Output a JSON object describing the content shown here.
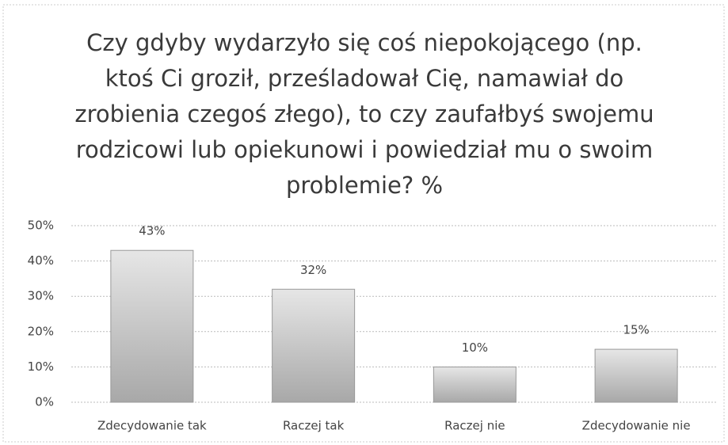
{
  "chart_data": {
    "type": "bar",
    "title": "Czy gdyby wydarzyło się coś niepokojącego (np. ktoś Ci groził, prześladował Cię, namawiał do zrobienia czegoś złego), to czy zaufałbyś swojemu rodzicowi lub opiekunowi i powiedział mu o swoim problemie? %",
    "categories": [
      "Zdecydowanie tak",
      "Raczej tak",
      "Raczej nie",
      "Zdecydowanie nie"
    ],
    "values": [
      43,
      32,
      10,
      15
    ],
    "value_labels": [
      "43%",
      "32%",
      "10%",
      "15%"
    ],
    "color": "#c4c4c4",
    "ylim": [
      0,
      50
    ],
    "yticks": [
      {
        "value": 0,
        "label": "0%"
      },
      {
        "value": 10,
        "label": "10%"
      },
      {
        "value": 20,
        "label": "20%"
      },
      {
        "value": 30,
        "label": "30%"
      },
      {
        "value": 40,
        "label": "40%"
      },
      {
        "value": 50,
        "label": "50%"
      }
    ],
    "grid": true
  }
}
